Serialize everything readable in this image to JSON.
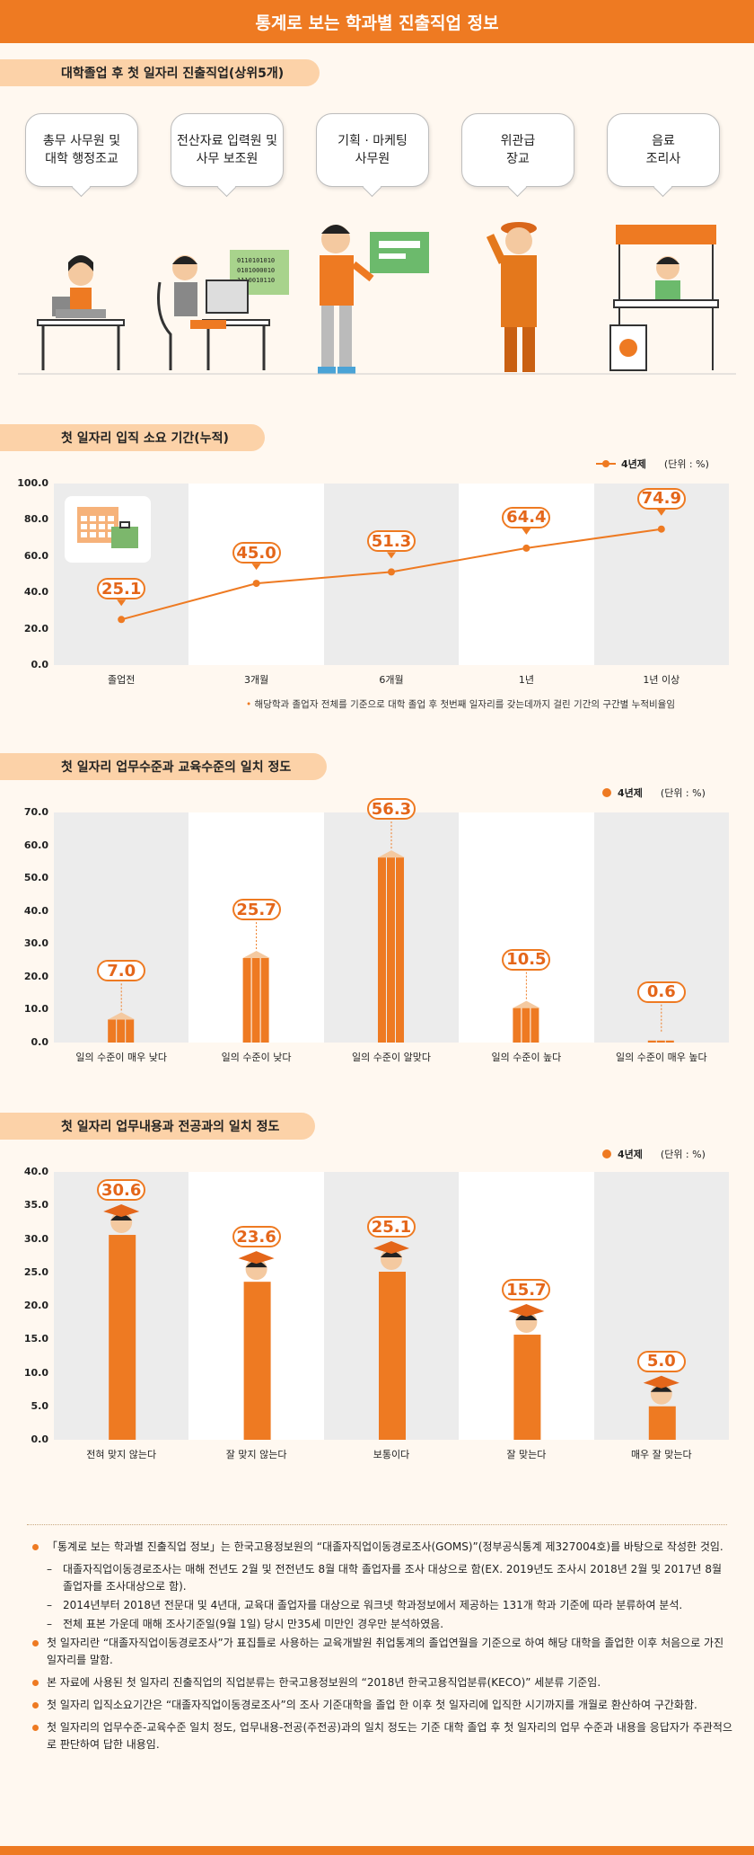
{
  "page": {
    "title": "통계로 보는 학과별 진출직업 정보",
    "colors": {
      "accent": "#ee7a22",
      "pill": "#fcd2a8",
      "stripe": "#ececec",
      "background": "#fff8f0"
    }
  },
  "section1": {
    "title": "대학졸업 후 첫 일자리 진출직업(상위5개)",
    "jobs": [
      {
        "line1": "총무 사무원 및",
        "line2": "대학 행정조교",
        "icon": "office-worker-icon"
      },
      {
        "line1": "전산자료 입력원 및",
        "line2": "사무 보조원",
        "icon": "data-entry-worker-icon"
      },
      {
        "line1": "기획 · 마케팅",
        "line2": "사무원",
        "icon": "presenter-icon"
      },
      {
        "line1": "위관급",
        "line2": "장교",
        "icon": "officer-icon"
      },
      {
        "line1": "음료",
        "line2": "조리사",
        "icon": "barista-icon"
      }
    ],
    "binary_text": [
      "0110101010",
      "0101000010",
      "1110010110"
    ]
  },
  "chart1": {
    "title": "첫 일자리 입직 소요 기간(누적)",
    "legend": "4년제",
    "unit": "(단위 : %)",
    "note": "해당학과 졸업자 전체를 기준으로 대학 졸업 후 첫번째 일자리를 갖는데까지 걸린 기간의 구간별 누적비율임",
    "yticks": [
      "100.0",
      "80.0",
      "60.0",
      "40.0",
      "20.0",
      "0.0"
    ]
  },
  "chart2": {
    "title": "첫 일자리 업무수준과 교육수준의 일치 정도",
    "legend": "4년제",
    "unit": "(단위 : %)",
    "yticks": [
      "70.0",
      "60.0",
      "50.0",
      "40.0",
      "30.0",
      "20.0",
      "10.0",
      "0.0"
    ]
  },
  "chart3": {
    "title": "첫 일자리 업무내용과 전공과의 일치 정도",
    "legend": "4년제",
    "unit": "(단위 : %)",
    "yticks": [
      "40.0",
      "35.0",
      "30.0",
      "25.0",
      "20.0",
      "15.0",
      "10.0",
      "5.0",
      "0.0"
    ]
  },
  "chart_data": [
    {
      "type": "line",
      "title": "첫 일자리 입직 소요 기간(누적)",
      "categories": [
        "졸업전",
        "3개월",
        "6개월",
        "1년",
        "1년 이상"
      ],
      "series": [
        {
          "name": "4년제",
          "values": [
            25.1,
            45.0,
            51.3,
            64.4,
            74.9
          ]
        }
      ],
      "labels": [
        "25.1",
        "45.0",
        "51.3",
        "64.4",
        "74.9"
      ],
      "ylim": [
        0,
        100
      ],
      "unit": "%"
    },
    {
      "type": "bar",
      "title": "첫 일자리 업무수준과 교육수준의 일치 정도",
      "categories": [
        "일의 수준이 매우 낮다",
        "일의 수준이 낮다",
        "일의 수준이 알맞다",
        "일의 수준이 높다",
        "일의 수준이 매우 높다"
      ],
      "series": [
        {
          "name": "4년제",
          "values": [
            7.0,
            25.7,
            56.3,
            10.5,
            0.6
          ]
        }
      ],
      "labels": [
        "7.0",
        "25.7",
        "56.3",
        "10.5",
        "0.6"
      ],
      "ylim": [
        0,
        70
      ],
      "unit": "%"
    },
    {
      "type": "bar",
      "title": "첫 일자리 업무내용과 전공과의 일치 정도",
      "categories": [
        "전혀 맞지 않는다",
        "잘 맞지 않는다",
        "보통이다",
        "잘 맞는다",
        "매우 잘 맞는다"
      ],
      "series": [
        {
          "name": "4년제",
          "values": [
            30.6,
            23.6,
            25.1,
            15.7,
            5.0
          ]
        }
      ],
      "labels": [
        "30.6",
        "23.6",
        "25.1",
        "15.7",
        "5.0"
      ],
      "ylim": [
        0,
        40
      ],
      "unit": "%"
    }
  ],
  "footnotes": [
    {
      "type": "bullet",
      "text": "「통계로 보는 학과별 진출직업 정보」는 한국고용정보원의 “대졸자직업이동경로조사(GOMS)”(정부공식통계 제327004호)를 바탕으로 작성한 것임."
    },
    {
      "type": "dash",
      "text": "대졸자직업이동경로조사는 매해 전년도 2월 및 전전년도 8월 대학 졸업자를 조사 대상으로 함(EX. 2019년도 조사시 2018년 2월 및 2017년 8월 졸업자를 조사대상으로 함)."
    },
    {
      "type": "dash",
      "text": "2014년부터 2018년 전문대 및 4년대, 교육대 졸업자를 대상으로 워크넷 학과정보에서 제공하는 131개 학과 기준에 따라 분류하여 분석."
    },
    {
      "type": "dash",
      "text": "전체 표본 가운데 매해 조사기준일(9월 1일) 당시 만35세 미만인 경우만 분석하였음."
    },
    {
      "type": "bullet",
      "text": "첫 일자리란 “대졸자직업이동경로조사”가 표집틀로 사용하는 교육개발원 취업통계의 졸업연월을 기준으로 하여 해당 대학을 졸업한 이후 처음으로 가진 일자리를 말함."
    },
    {
      "type": "bullet",
      "text": "본 자료에 사용된 첫 일자리 진출직업의 직업분류는 한국고용정보원의 “2018년 한국고용직업분류(KECO)” 세분류 기준임."
    },
    {
      "type": "bullet",
      "text": "첫 일자리 입직소요기간은 “대졸자직업이동경로조사”의 조사 기준대학을 졸업 한 이후 첫 일자리에 입직한 시기까지를 개월로 환산하여 구간화함."
    },
    {
      "type": "bullet",
      "text": "첫 일자리의 업무수준-교육수준 일치 정도, 업무내용-전공(주전공)과의 일치 정도는 기준 대학 졸업 후 첫 일자리의 업무 수준과 내용을 응답자가 주관적으로 판단하여 답한 내용임."
    }
  ]
}
